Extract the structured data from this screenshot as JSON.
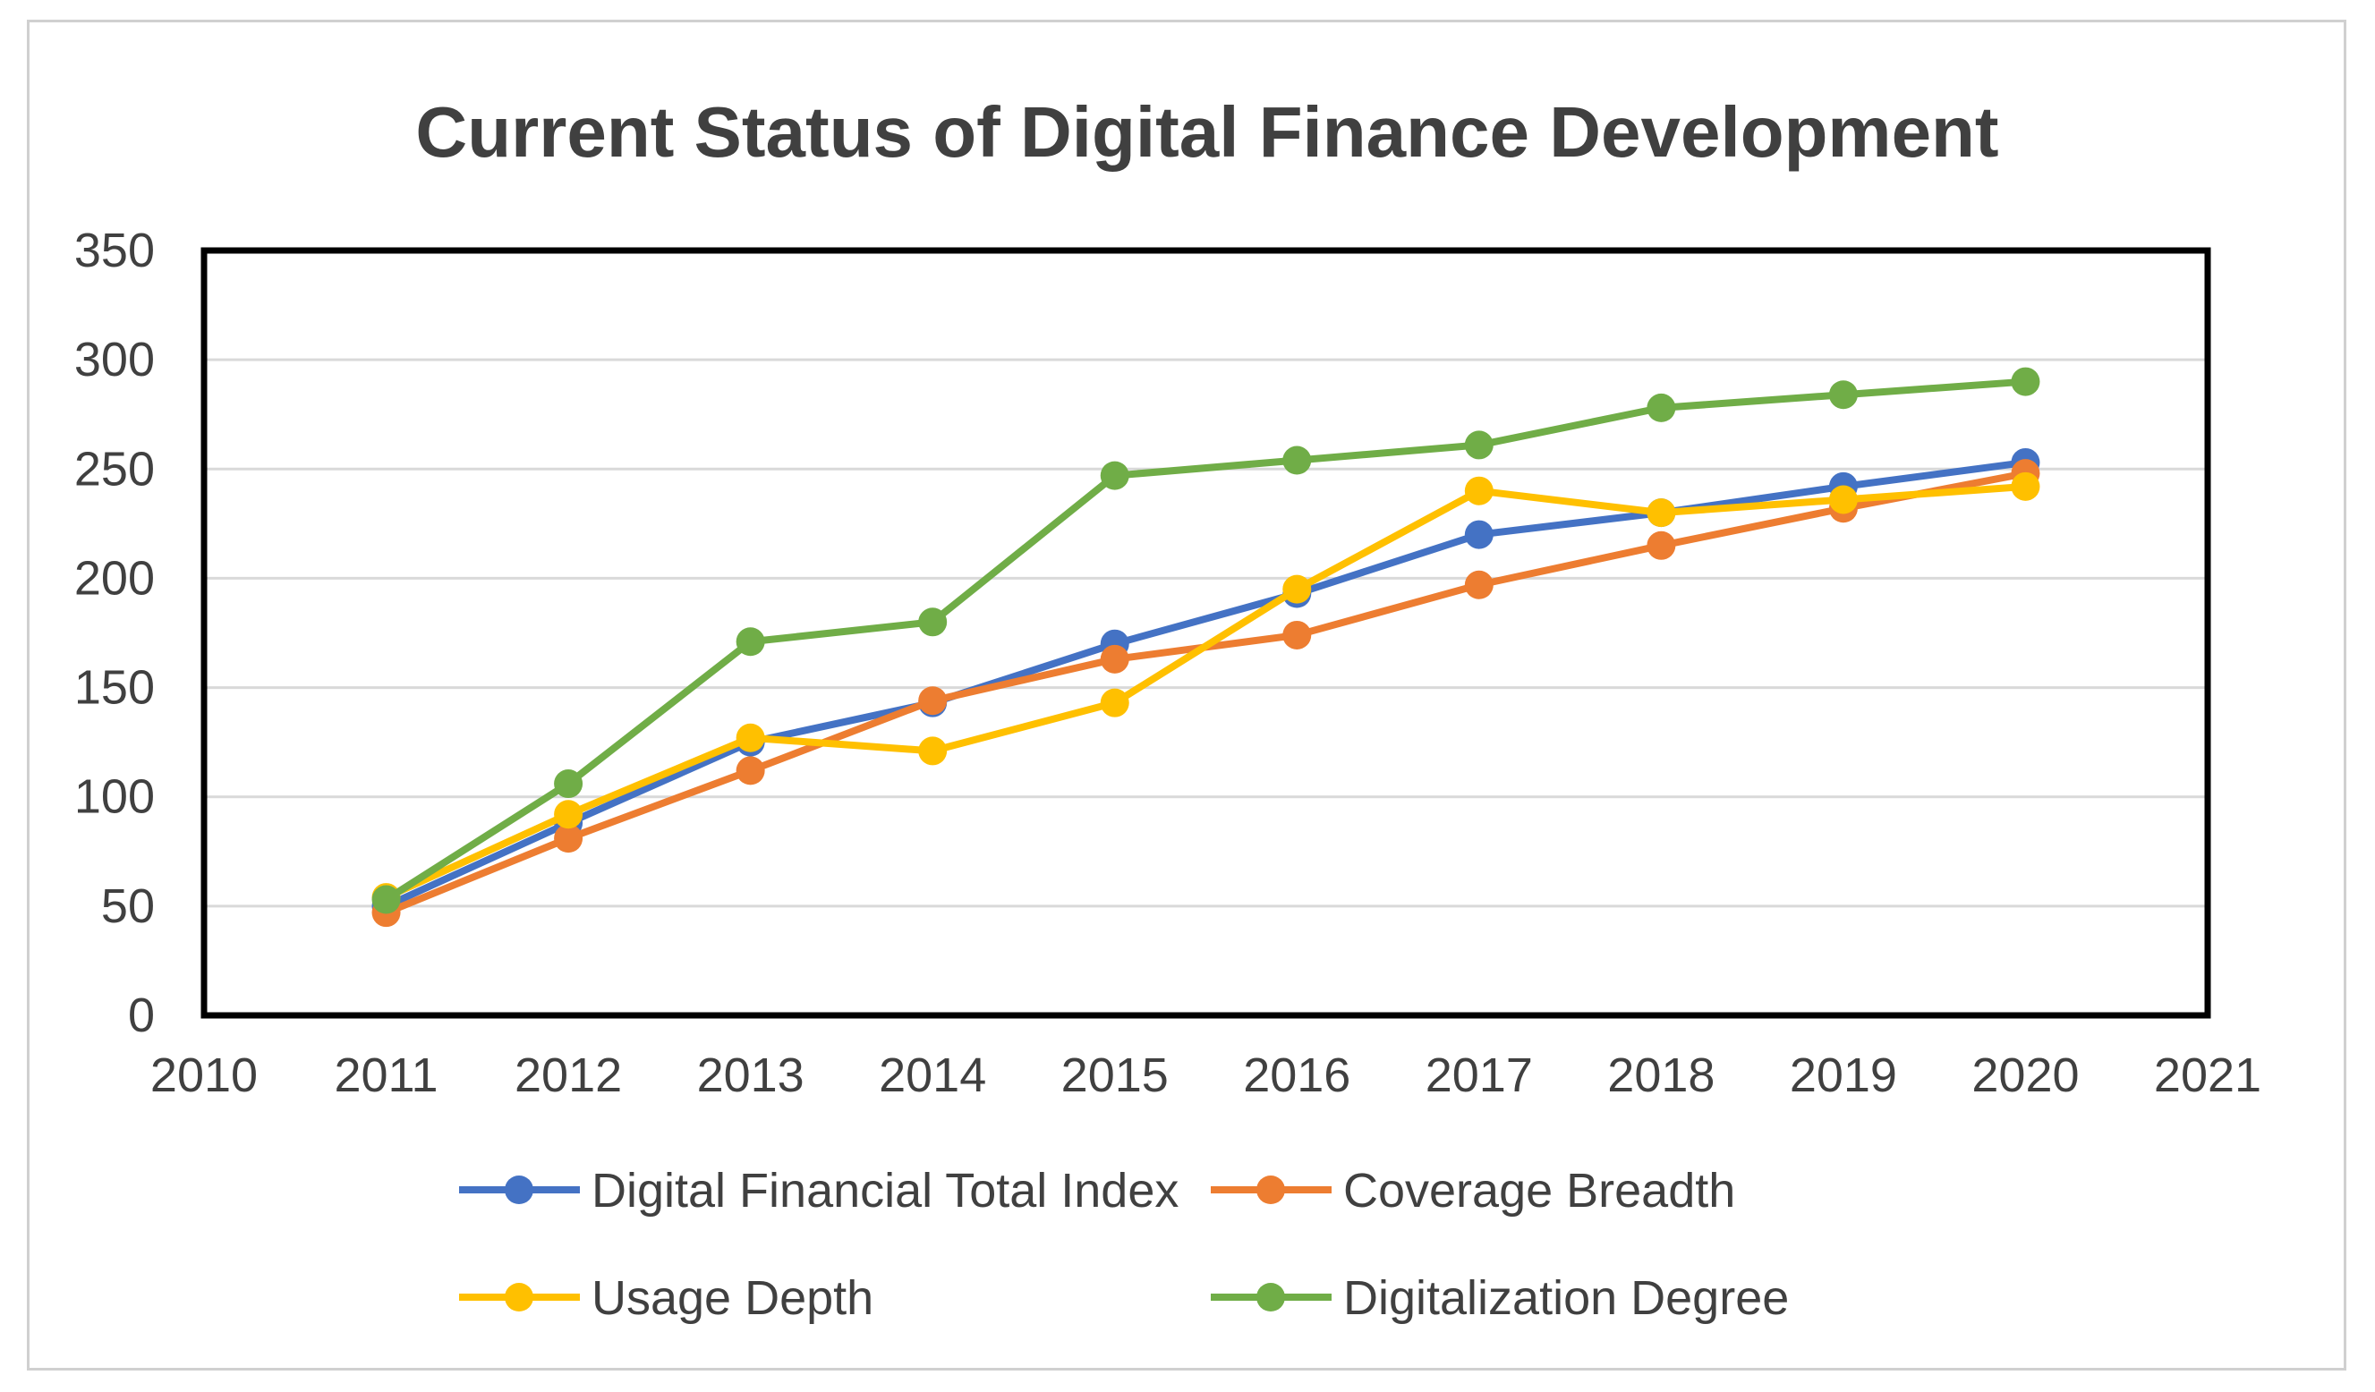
{
  "chart_data": {
    "type": "line",
    "title": "Current Status of Digital Finance Development",
    "xlabel": "",
    "ylabel": "",
    "xlim": [
      2010,
      2021
    ],
    "ylim": [
      0,
      350
    ],
    "x_ticks": [
      "2010",
      "2011",
      "2012",
      "2013",
      "2014",
      "2015",
      "2016",
      "2017",
      "2018",
      "2019",
      "2020",
      "2021"
    ],
    "y_ticks": [
      "0",
      "50",
      "100",
      "150",
      "200",
      "250",
      "300",
      "350"
    ],
    "grid": true,
    "legend_position": "bottom",
    "x": [
      2011,
      2012,
      2013,
      2014,
      2015,
      2016,
      2017,
      2018,
      2019,
      2020
    ],
    "series": [
      {
        "name": "Digital Financial Total Index",
        "color": "#4472c4",
        "values": [
          50,
          88,
          125,
          143,
          170,
          193,
          220,
          230,
          242,
          253
        ]
      },
      {
        "name": "Coverage Breadth",
        "color": "#ed7d31",
        "values": [
          47,
          81,
          112,
          144,
          163,
          174,
          197,
          215,
          232,
          248
        ]
      },
      {
        "name": "Usage Depth",
        "color": "#ffc000",
        "values": [
          54,
          92,
          127,
          121,
          143,
          195,
          240,
          230,
          236,
          242
        ]
      },
      {
        "name": "Digitalization Degree",
        "color": "#70ad47",
        "values": [
          53,
          106,
          171,
          180,
          247,
          254,
          261,
          278,
          284,
          290
        ]
      }
    ]
  }
}
